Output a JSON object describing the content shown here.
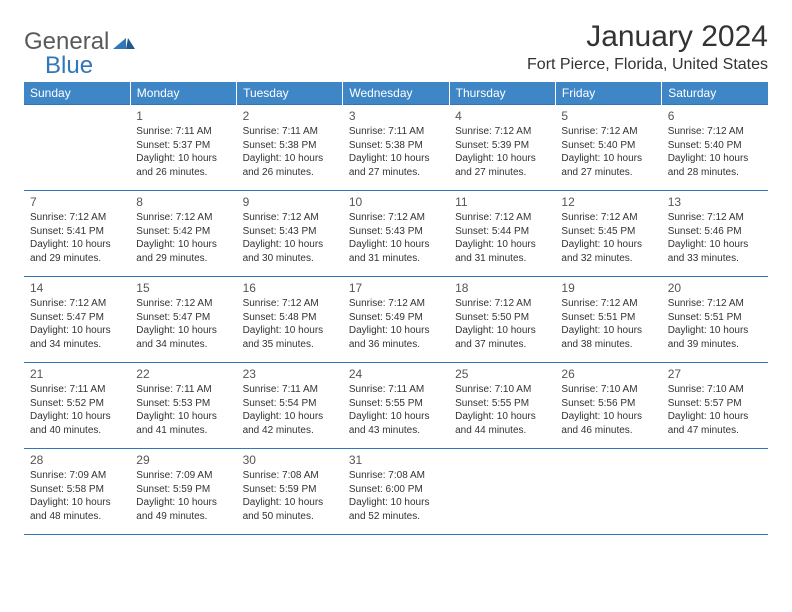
{
  "brand": {
    "text_a": "General",
    "text_b": "Blue",
    "mark_color": "#2f77b8"
  },
  "title": "January 2024",
  "location": "Fort Pierce, Florida, United States",
  "header_bg": "#3f86c6",
  "border_color": "#2f77b8",
  "day_headers": [
    "Sunday",
    "Monday",
    "Tuesday",
    "Wednesday",
    "Thursday",
    "Friday",
    "Saturday"
  ],
  "weeks": [
    [
      null,
      {
        "n": "1",
        "sr": "Sunrise: 7:11 AM",
        "ss": "Sunset: 5:37 PM",
        "d1": "Daylight: 10 hours",
        "d2": "and 26 minutes."
      },
      {
        "n": "2",
        "sr": "Sunrise: 7:11 AM",
        "ss": "Sunset: 5:38 PM",
        "d1": "Daylight: 10 hours",
        "d2": "and 26 minutes."
      },
      {
        "n": "3",
        "sr": "Sunrise: 7:11 AM",
        "ss": "Sunset: 5:38 PM",
        "d1": "Daylight: 10 hours",
        "d2": "and 27 minutes."
      },
      {
        "n": "4",
        "sr": "Sunrise: 7:12 AM",
        "ss": "Sunset: 5:39 PM",
        "d1": "Daylight: 10 hours",
        "d2": "and 27 minutes."
      },
      {
        "n": "5",
        "sr": "Sunrise: 7:12 AM",
        "ss": "Sunset: 5:40 PM",
        "d1": "Daylight: 10 hours",
        "d2": "and 27 minutes."
      },
      {
        "n": "6",
        "sr": "Sunrise: 7:12 AM",
        "ss": "Sunset: 5:40 PM",
        "d1": "Daylight: 10 hours",
        "d2": "and 28 minutes."
      }
    ],
    [
      {
        "n": "7",
        "sr": "Sunrise: 7:12 AM",
        "ss": "Sunset: 5:41 PM",
        "d1": "Daylight: 10 hours",
        "d2": "and 29 minutes."
      },
      {
        "n": "8",
        "sr": "Sunrise: 7:12 AM",
        "ss": "Sunset: 5:42 PM",
        "d1": "Daylight: 10 hours",
        "d2": "and 29 minutes."
      },
      {
        "n": "9",
        "sr": "Sunrise: 7:12 AM",
        "ss": "Sunset: 5:43 PM",
        "d1": "Daylight: 10 hours",
        "d2": "and 30 minutes."
      },
      {
        "n": "10",
        "sr": "Sunrise: 7:12 AM",
        "ss": "Sunset: 5:43 PM",
        "d1": "Daylight: 10 hours",
        "d2": "and 31 minutes."
      },
      {
        "n": "11",
        "sr": "Sunrise: 7:12 AM",
        "ss": "Sunset: 5:44 PM",
        "d1": "Daylight: 10 hours",
        "d2": "and 31 minutes."
      },
      {
        "n": "12",
        "sr": "Sunrise: 7:12 AM",
        "ss": "Sunset: 5:45 PM",
        "d1": "Daylight: 10 hours",
        "d2": "and 32 minutes."
      },
      {
        "n": "13",
        "sr": "Sunrise: 7:12 AM",
        "ss": "Sunset: 5:46 PM",
        "d1": "Daylight: 10 hours",
        "d2": "and 33 minutes."
      }
    ],
    [
      {
        "n": "14",
        "sr": "Sunrise: 7:12 AM",
        "ss": "Sunset: 5:47 PM",
        "d1": "Daylight: 10 hours",
        "d2": "and 34 minutes."
      },
      {
        "n": "15",
        "sr": "Sunrise: 7:12 AM",
        "ss": "Sunset: 5:47 PM",
        "d1": "Daylight: 10 hours",
        "d2": "and 34 minutes."
      },
      {
        "n": "16",
        "sr": "Sunrise: 7:12 AM",
        "ss": "Sunset: 5:48 PM",
        "d1": "Daylight: 10 hours",
        "d2": "and 35 minutes."
      },
      {
        "n": "17",
        "sr": "Sunrise: 7:12 AM",
        "ss": "Sunset: 5:49 PM",
        "d1": "Daylight: 10 hours",
        "d2": "and 36 minutes."
      },
      {
        "n": "18",
        "sr": "Sunrise: 7:12 AM",
        "ss": "Sunset: 5:50 PM",
        "d1": "Daylight: 10 hours",
        "d2": "and 37 minutes."
      },
      {
        "n": "19",
        "sr": "Sunrise: 7:12 AM",
        "ss": "Sunset: 5:51 PM",
        "d1": "Daylight: 10 hours",
        "d2": "and 38 minutes."
      },
      {
        "n": "20",
        "sr": "Sunrise: 7:12 AM",
        "ss": "Sunset: 5:51 PM",
        "d1": "Daylight: 10 hours",
        "d2": "and 39 minutes."
      }
    ],
    [
      {
        "n": "21",
        "sr": "Sunrise: 7:11 AM",
        "ss": "Sunset: 5:52 PM",
        "d1": "Daylight: 10 hours",
        "d2": "and 40 minutes."
      },
      {
        "n": "22",
        "sr": "Sunrise: 7:11 AM",
        "ss": "Sunset: 5:53 PM",
        "d1": "Daylight: 10 hours",
        "d2": "and 41 minutes."
      },
      {
        "n": "23",
        "sr": "Sunrise: 7:11 AM",
        "ss": "Sunset: 5:54 PM",
        "d1": "Daylight: 10 hours",
        "d2": "and 42 minutes."
      },
      {
        "n": "24",
        "sr": "Sunrise: 7:11 AM",
        "ss": "Sunset: 5:55 PM",
        "d1": "Daylight: 10 hours",
        "d2": "and 43 minutes."
      },
      {
        "n": "25",
        "sr": "Sunrise: 7:10 AM",
        "ss": "Sunset: 5:55 PM",
        "d1": "Daylight: 10 hours",
        "d2": "and 44 minutes."
      },
      {
        "n": "26",
        "sr": "Sunrise: 7:10 AM",
        "ss": "Sunset: 5:56 PM",
        "d1": "Daylight: 10 hours",
        "d2": "and 46 minutes."
      },
      {
        "n": "27",
        "sr": "Sunrise: 7:10 AM",
        "ss": "Sunset: 5:57 PM",
        "d1": "Daylight: 10 hours",
        "d2": "and 47 minutes."
      }
    ],
    [
      {
        "n": "28",
        "sr": "Sunrise: 7:09 AM",
        "ss": "Sunset: 5:58 PM",
        "d1": "Daylight: 10 hours",
        "d2": "and 48 minutes."
      },
      {
        "n": "29",
        "sr": "Sunrise: 7:09 AM",
        "ss": "Sunset: 5:59 PM",
        "d1": "Daylight: 10 hours",
        "d2": "and 49 minutes."
      },
      {
        "n": "30",
        "sr": "Sunrise: 7:08 AM",
        "ss": "Sunset: 5:59 PM",
        "d1": "Daylight: 10 hours",
        "d2": "and 50 minutes."
      },
      {
        "n": "31",
        "sr": "Sunrise: 7:08 AM",
        "ss": "Sunset: 6:00 PM",
        "d1": "Daylight: 10 hours",
        "d2": "and 52 minutes."
      },
      null,
      null,
      null
    ]
  ]
}
